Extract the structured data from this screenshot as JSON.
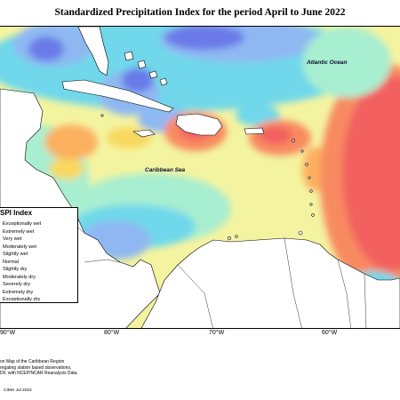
{
  "title": "Standardized Precipitation Index for the period April to June 2022",
  "ocean_labels": {
    "atlantic": "Atlantic Ocean",
    "caribbean": "Caribbean Sea"
  },
  "longitude_labels": [
    "90°W",
    "80°W",
    "70°W",
    "60°W"
  ],
  "legend": {
    "title": "SPI Index",
    "items": [
      {
        "label": "Exceptionally wet",
        "color": "#3a3ad0"
      },
      {
        "label": "Extremely wet",
        "color": "#6a7ae8"
      },
      {
        "label": "Very wet",
        "color": "#8fb8f2"
      },
      {
        "label": "Moderately wet",
        "color": "#6fd8ea"
      },
      {
        "label": "Slightly wet",
        "color": "#a8eed0"
      },
      {
        "label": "Normal",
        "color": "#f4f4a0"
      },
      {
        "label": "Slightly dry",
        "color": "#f8d860"
      },
      {
        "label": "Moderately dry",
        "color": "#fbb060"
      },
      {
        "label": "Severely dry",
        "color": "#f88a60"
      },
      {
        "label": "Extremely dry",
        "color": "#f26060"
      },
      {
        "label": "Exceptionally dry",
        "color": "#d83a3a"
      }
    ]
  },
  "notes": [
    "on Map of the Caribbean Region",
    "regating station based observations,",
    "DF, with NCEP/NCAR Reanalysis Data."
  ],
  "copyright": "CIMH Jul 2022",
  "colors": {
    "ocean_normal": "#f4f4a0",
    "land": "#ffffff",
    "coastline": "#000000"
  }
}
